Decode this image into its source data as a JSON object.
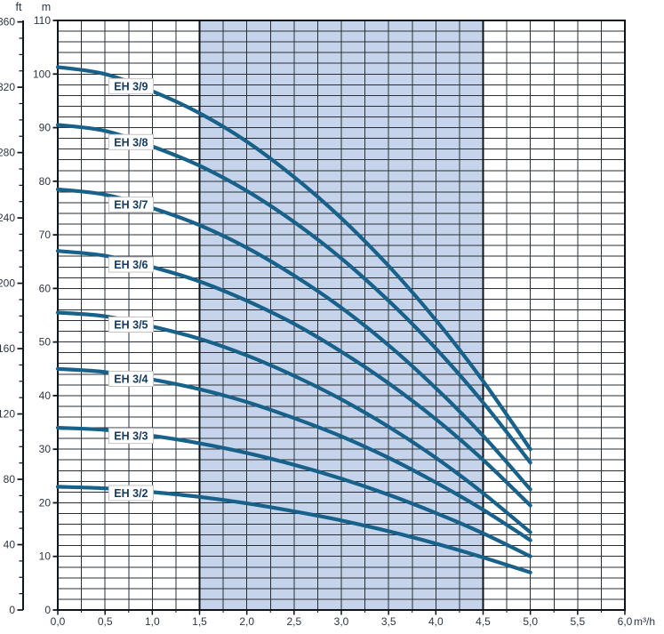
{
  "chart_data": {
    "type": "line",
    "title": "",
    "x_axis": {
      "unit": "m³/h",
      "min": 0,
      "max": 6,
      "minor_step": 0.25,
      "label_step": 0.5,
      "tick_labels": [
        "0,0",
        "0,5",
        "1,0",
        "1,5",
        "2,0",
        "2,5",
        "3,0",
        "3,5",
        "4,0",
        "4,5",
        "5,0",
        "5,5",
        "6,0"
      ]
    },
    "y_axis_m": {
      "unit": "m",
      "min": 0,
      "max": 110,
      "grid_step": 2,
      "label_step": 10,
      "tick_labels": [
        0,
        10,
        20,
        30,
        40,
        50,
        60,
        70,
        80,
        90,
        100,
        110
      ]
    },
    "y_axis_ft": {
      "unit": "ft",
      "min": 0,
      "max": 360,
      "label_step": 40,
      "minor_step": 10,
      "tick_labels": [
        0,
        40,
        80,
        120,
        160,
        200,
        240,
        280,
        320,
        360
      ],
      "ft_per_m": 3.2808
    },
    "operating_band": {
      "from": 1.5,
      "to": 4.5
    },
    "x_values": [
      0,
      0.5,
      1.0,
      1.5,
      2.0,
      2.5,
      3.0,
      3.5,
      4.0,
      4.5,
      5.0
    ],
    "series": [
      {
        "name": "EH 3/9",
        "label_q": 0.775,
        "head_m": [
          101.3,
          100.0,
          96.8,
          92.7,
          87.4,
          80.8,
          73.1,
          64.2,
          54.1,
          42.7,
          30.0
        ]
      },
      {
        "name": "EH 3/8",
        "label_q": 0.775,
        "head_m": [
          90.5,
          89.4,
          86.5,
          82.9,
          78.2,
          72.4,
          65.6,
          57.7,
          48.8,
          38.7,
          27.5
        ]
      },
      {
        "name": "EH 3/7",
        "label_q": 0.775,
        "head_m": [
          78.5,
          77.5,
          75.0,
          71.8,
          67.6,
          62.4,
          56.4,
          49.4,
          41.4,
          32.5,
          22.5
        ]
      },
      {
        "name": "EH 3/6",
        "label_q": 0.775,
        "head_m": [
          67.0,
          66.1,
          64.0,
          61.3,
          57.7,
          53.4,
          48.2,
          42.3,
          35.6,
          28.0,
          19.5
        ]
      },
      {
        "name": "EH 3/5",
        "label_q": 0.775,
        "head_m": [
          55.5,
          54.8,
          52.9,
          50.6,
          47.5,
          43.7,
          39.3,
          34.2,
          28.4,
          21.8,
          14.5
        ]
      },
      {
        "name": "EH 3/4",
        "label_q": 0.775,
        "head_m": [
          45.0,
          44.4,
          43.0,
          41.2,
          38.8,
          35.8,
          32.4,
          28.4,
          23.8,
          18.7,
          13.0
        ]
      },
      {
        "name": "EH 3/3",
        "label_q": 0.775,
        "head_m": [
          34.0,
          33.6,
          32.5,
          31.1,
          29.3,
          27.1,
          24.5,
          21.5,
          18.1,
          14.3,
          10.0
        ]
      },
      {
        "name": "EH 3/2",
        "label_q": 0.775,
        "head_m": [
          23.0,
          22.7,
          22.0,
          21.1,
          19.9,
          18.4,
          16.7,
          14.7,
          12.4,
          9.8,
          7.0
        ]
      }
    ],
    "colors": {
      "curve": "#17618a",
      "band_fill": "#c5d4ea",
      "grid": "#2a2f36",
      "frame": "#10151a",
      "axis_text": "#2c3744",
      "label_text": "#143a5f",
      "label_box_fill": "#ffffff",
      "label_box_border": "#c4c4c4"
    },
    "layout_hints": {
      "grid": "on",
      "legend": "inline curve labels in white boxes",
      "band_note": "shaded recommended operating range between 1,5 and 4,5 m³/h"
    }
  }
}
